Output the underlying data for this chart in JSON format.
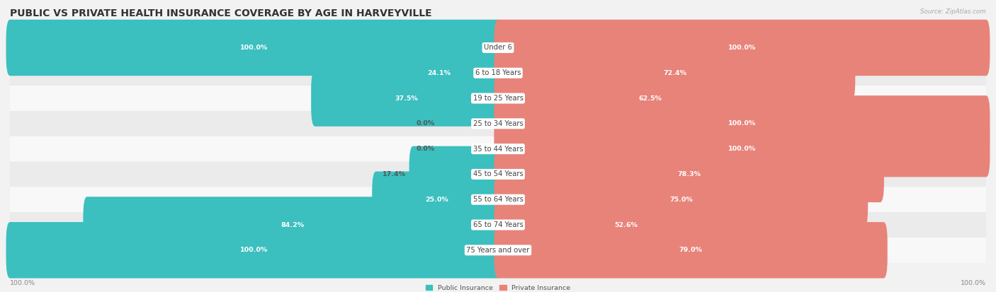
{
  "title": "PUBLIC VS PRIVATE HEALTH INSURANCE COVERAGE BY AGE IN HARVEYVILLE",
  "source": "Source: ZipAtlas.com",
  "categories": [
    "Under 6",
    "6 to 18 Years",
    "19 to 25 Years",
    "25 to 34 Years",
    "35 to 44 Years",
    "45 to 54 Years",
    "55 to 64 Years",
    "65 to 74 Years",
    "75 Years and over"
  ],
  "public_values": [
    100.0,
    24.1,
    37.5,
    0.0,
    0.0,
    17.4,
    25.0,
    84.2,
    100.0
  ],
  "private_values": [
    100.0,
    72.4,
    62.5,
    100.0,
    100.0,
    78.3,
    75.0,
    52.6,
    79.0
  ],
  "public_color": "#3bbfbf",
  "private_color": "#e8837a",
  "public_label": "Public Insurance",
  "private_label": "Private Insurance",
  "bg_color": "#f2f2f2",
  "row_colors": [
    "#f8f8f8",
    "#ebebeb"
  ],
  "title_fontsize": 10,
  "label_fontsize": 7.2,
  "value_fontsize": 6.8,
  "footer_fontsize": 6.8,
  "max_val": 100.0
}
